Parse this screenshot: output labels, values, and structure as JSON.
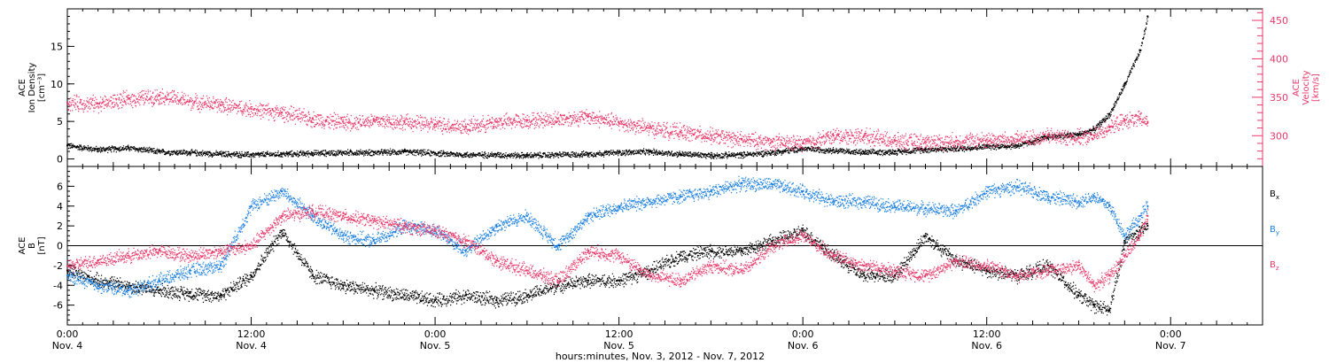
{
  "chart_data": {
    "type": "scatter",
    "x_axis": {
      "label": "hours:minutes, Nov.  3, 2012 - Nov.  7, 2012",
      "range_hours": [
        0,
        78
      ],
      "ticks": [
        {
          "hour": 0,
          "time": "0:00",
          "day": "Nov. 4"
        },
        {
          "hour": 12,
          "time": "12:00",
          "day": "Nov. 4"
        },
        {
          "hour": 24,
          "time": "0:00",
          "day": "Nov. 5"
        },
        {
          "hour": 36,
          "time": "12:00",
          "day": "Nov. 5"
        },
        {
          "hour": 48,
          "time": "0:00",
          "day": "Nov. 6"
        },
        {
          "hour": 60,
          "time": "12:00",
          "day": "Nov. 6"
        },
        {
          "hour": 72,
          "time": "0:00",
          "day": "Nov. 7"
        }
      ],
      "data_end_hour": 70.5
    },
    "panels": [
      {
        "name": "plasma",
        "left_axis": {
          "label_lines": [
            "ACE",
            "Ion Density"
          ],
          "units": "[cm⁻³]",
          "range": [
            -1,
            20
          ],
          "ticks": [
            0,
            5,
            10,
            15
          ],
          "color": "#000000"
        },
        "right_axis": {
          "label_lines": [
            "ACE",
            "Velocity"
          ],
          "units": "[km/s]",
          "range": [
            260,
            465
          ],
          "ticks": [
            300,
            350,
            400,
            450
          ],
          "color": "#e8386a"
        },
        "series": [
          {
            "key": "density",
            "axis": "left",
            "color": "#000000",
            "x": [
              0,
              2,
              4,
              6,
              8,
              10,
              12,
              14,
              16,
              18,
              20,
              22,
              24,
              26,
              28,
              30,
              32,
              34,
              36,
              38,
              40,
              42,
              44,
              46,
              48,
              50,
              52,
              54,
              56,
              58,
              60,
              62,
              64,
              66,
              67,
              68,
              69,
              70,
              70.5
            ],
            "y": [
              1.8,
              1.3,
              1.5,
              1.0,
              0.9,
              0.7,
              0.6,
              0.7,
              0.8,
              0.9,
              0.9,
              1.0,
              0.8,
              0.6,
              0.6,
              0.5,
              0.6,
              0.7,
              0.9,
              1.0,
              0.7,
              0.5,
              0.6,
              0.9,
              1.4,
              1.2,
              0.9,
              1.0,
              1.3,
              1.4,
              1.7,
              1.8,
              3.0,
              3.3,
              4.0,
              6.0,
              10.0,
              14.5,
              19.0
            ]
          },
          {
            "key": "velocity",
            "axis": "right",
            "color": "#e8386a",
            "x": [
              0,
              2,
              4,
              6,
              8,
              10,
              12,
              14,
              16,
              18,
              20,
              22,
              24,
              26,
              28,
              30,
              32,
              34,
              36,
              38,
              40,
              42,
              44,
              46,
              48,
              50,
              52,
              54,
              56,
              58,
              60,
              62,
              64,
              66,
              67,
              68,
              69,
              70,
              70.5
            ],
            "y": [
              343,
              342,
              348,
              352,
              345,
              340,
              335,
              330,
              322,
              318,
              320,
              318,
              315,
              312,
              318,
              320,
              322,
              325,
              317,
              310,
              305,
              300,
              295,
              292,
              290,
              300,
              300,
              293,
              292,
              293,
              295,
              295,
              300,
              298,
              300,
              312,
              320,
              322,
              318
            ]
          }
        ]
      },
      {
        "name": "magnetic",
        "left_axis": {
          "label_lines": [
            "ACE",
            "B"
          ],
          "units": "[nT]",
          "range": [
            -8,
            8
          ],
          "ticks": [
            -6,
            -4,
            -2,
            0,
            2,
            4,
            6
          ]
        },
        "zero_line": true,
        "series": [
          {
            "key": "bx",
            "name": "B",
            "subscript": "x",
            "color": "#000000",
            "x": [
              0,
              2,
              4,
              6,
              8,
              10,
              12,
              14,
              16,
              18,
              20,
              22,
              24,
              26,
              28,
              30,
              32,
              34,
              36,
              38,
              40,
              42,
              44,
              46,
              48,
              50,
              52,
              54,
              56,
              58,
              60,
              62,
              64,
              66,
              67,
              68,
              69,
              70,
              70.5
            ],
            "y": [
              -2.5,
              -3.5,
              -4.0,
              -4.5,
              -4.8,
              -5.0,
              -3.0,
              1.5,
              -3.0,
              -4.0,
              -4.5,
              -5.0,
              -5.5,
              -5.0,
              -5.5,
              -5.0,
              -4.0,
              -3.5,
              -3.5,
              -2.5,
              -1.0,
              -0.5,
              -0.5,
              0.5,
              1.5,
              -1.0,
              -3.0,
              -3.0,
              1.0,
              -1.5,
              -2.5,
              -3.0,
              -2.0,
              -5.0,
              -6.0,
              -6.5,
              0.5,
              1.5,
              2.0
            ]
          },
          {
            "key": "by",
            "name": "B",
            "subscript": "y",
            "color": "#1a7fe0",
            "x": [
              0,
              2,
              4,
              6,
              8,
              10,
              12,
              14,
              16,
              18,
              20,
              22,
              24,
              26,
              28,
              30,
              32,
              34,
              36,
              38,
              40,
              42,
              44,
              46,
              48,
              50,
              52,
              54,
              56,
              58,
              60,
              62,
              64,
              66,
              67,
              68,
              69,
              70,
              70.5
            ],
            "y": [
              -3.0,
              -4.0,
              -4.5,
              -3.5,
              -2.5,
              -2.0,
              4.0,
              5.5,
              3.0,
              1.0,
              0.5,
              2.0,
              1.5,
              -0.5,
              2.0,
              3.0,
              0.0,
              3.0,
              4.0,
              4.5,
              5.0,
              5.5,
              6.3,
              6.2,
              5.5,
              4.5,
              4.5,
              4.0,
              3.8,
              3.5,
              5.5,
              6.0,
              5.0,
              4.5,
              5.0,
              4.0,
              1.0,
              3.0,
              4.0
            ]
          },
          {
            "key": "bz",
            "name": "B",
            "subscript": "z",
            "color": "#e8386a",
            "x": [
              0,
              2,
              4,
              6,
              8,
              10,
              12,
              14,
              16,
              18,
              20,
              22,
              24,
              26,
              28,
              30,
              32,
              34,
              36,
              38,
              40,
              42,
              44,
              46,
              48,
              50,
              52,
              54,
              56,
              58,
              60,
              62,
              64,
              66,
              67,
              68,
              69,
              70,
              70.5
            ],
            "y": [
              -2.0,
              -1.5,
              -1.0,
              -0.5,
              -1.0,
              -0.5,
              0.0,
              3.0,
              3.5,
              3.0,
              2.5,
              2.0,
              1.5,
              0.5,
              -1.5,
              -2.5,
              -3.5,
              -0.5,
              -1.0,
              -3.0,
              -3.5,
              -2.0,
              -2.5,
              0.0,
              1.0,
              -1.0,
              -2.0,
              -2.5,
              -3.0,
              -1.5,
              -2.0,
              -3.0,
              -2.5,
              -2.0,
              -4.0,
              -3.0,
              -1.0,
              1.0,
              3.0
            ]
          }
        ]
      }
    ]
  }
}
